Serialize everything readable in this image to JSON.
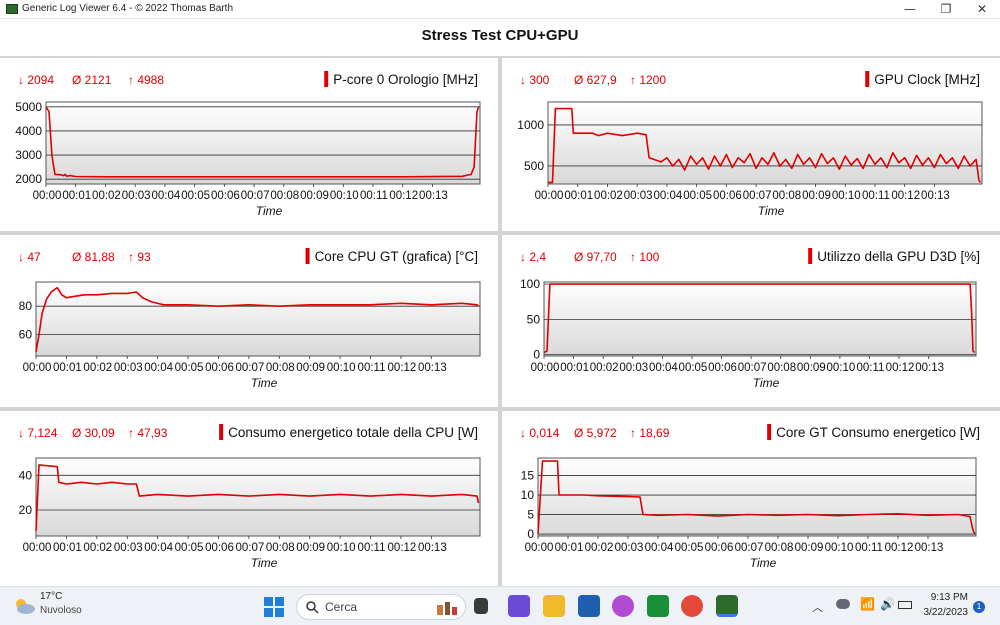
{
  "window": {
    "title": "Generic Log Viewer 6.4 - © 2022 Thomas Barth",
    "minimize": "—",
    "maximize": "❐",
    "close": "✕"
  },
  "main_title": "Stress Test CPU+GPU",
  "colors": {
    "series": "#e00000",
    "plot_bg_top": "#ffffff",
    "plot_bg_bottom": "#d9d9d9"
  },
  "chart_data": [
    {
      "type": "line",
      "title": "P-core 0 Orologio [MHz]",
      "stats": {
        "min": "↓ 2094",
        "avg": "Ø 2121",
        "max": "↑ 4988"
      },
      "xlabel": "Time",
      "ylabel": "",
      "xlim": [
        0,
        14.6
      ],
      "ylim": [
        1800,
        5200
      ],
      "yticks": [
        2000,
        3000,
        4000,
        5000
      ],
      "series": [
        {
          "name": "",
          "points": [
            [
              0,
              4988
            ],
            [
              0.1,
              4800
            ],
            [
              0.2,
              3000
            ],
            [
              0.3,
              2200
            ],
            [
              0.5,
              2180
            ],
            [
              0.6,
              2150
            ],
            [
              0.65,
              2200
            ],
            [
              0.7,
              2120
            ],
            [
              0.8,
              2150
            ],
            [
              1,
              2110
            ],
            [
              2,
              2100
            ],
            [
              4,
              2100
            ],
            [
              6,
              2100
            ],
            [
              8,
              2100
            ],
            [
              10,
              2100
            ],
            [
              12,
              2100
            ],
            [
              14,
              2120
            ],
            [
              14.3,
              2200
            ],
            [
              14.4,
              2500
            ],
            [
              14.5,
              4800
            ],
            [
              14.55,
              4988
            ]
          ]
        }
      ]
    },
    {
      "type": "line",
      "title": "GPU Clock [MHz]",
      "stats": {
        "min": "↓ 300",
        "avg": "Ø 627,9",
        "max": "↑ 1200"
      },
      "xlabel": "Time",
      "ylabel": "",
      "xlim": [
        0,
        14.6
      ],
      "ylim": [
        280,
        1280
      ],
      "yticks": [
        500,
        1000
      ],
      "series": [
        {
          "name": "",
          "points": [
            [
              0,
              300
            ],
            [
              0.15,
              300
            ],
            [
              0.25,
              1200
            ],
            [
              0.8,
              1200
            ],
            [
              0.85,
              900
            ],
            [
              1.5,
              900
            ],
            [
              1.7,
              870
            ],
            [
              2,
              900
            ],
            [
              2.5,
              870
            ],
            [
              3,
              900
            ],
            [
              3.3,
              880
            ],
            [
              3.4,
              600
            ],
            [
              3.8,
              550
            ],
            [
              4.0,
              600
            ],
            [
              4.2,
              500
            ],
            [
              4.4,
              580
            ],
            [
              4.6,
              450
            ],
            [
              4.8,
              620
            ],
            [
              5.0,
              520
            ],
            [
              5.2,
              600
            ],
            [
              5.4,
              460
            ],
            [
              5.6,
              620
            ],
            [
              5.8,
              500
            ],
            [
              6.0,
              640
            ],
            [
              6.2,
              480
            ],
            [
              6.4,
              600
            ],
            [
              6.6,
              540
            ],
            [
              6.8,
              650
            ],
            [
              7.0,
              470
            ],
            [
              7.2,
              600
            ],
            [
              7.4,
              520
            ],
            [
              7.6,
              660
            ],
            [
              7.8,
              500
            ],
            [
              8.0,
              580
            ],
            [
              8.2,
              470
            ],
            [
              8.4,
              640
            ],
            [
              8.6,
              520
            ],
            [
              8.8,
              600
            ],
            [
              9.0,
              480
            ],
            [
              9.2,
              650
            ],
            [
              9.4,
              530
            ],
            [
              9.6,
              600
            ],
            [
              9.8,
              460
            ],
            [
              10,
              620
            ],
            [
              10.2,
              510
            ],
            [
              10.4,
              590
            ],
            [
              10.6,
              470
            ],
            [
              10.8,
              640
            ],
            [
              11,
              520
            ],
            [
              11.2,
              600
            ],
            [
              11.4,
              480
            ],
            [
              11.6,
              660
            ],
            [
              11.8,
              540
            ],
            [
              12,
              600
            ],
            [
              12.2,
              470
            ],
            [
              12.4,
              630
            ],
            [
              12.6,
              510
            ],
            [
              12.8,
              600
            ],
            [
              13,
              480
            ],
            [
              13.2,
              640
            ],
            [
              13.4,
              530
            ],
            [
              13.6,
              600
            ],
            [
              13.8,
              470
            ],
            [
              14,
              620
            ],
            [
              14.2,
              500
            ],
            [
              14.4,
              580
            ],
            [
              14.5,
              320
            ],
            [
              14.55,
              300
            ]
          ]
        }
      ]
    },
    {
      "type": "line",
      "title": "Core CPU GT (grafica) [°C]",
      "stats": {
        "min": "↓ 47",
        "avg": "Ø 81,88",
        "max": "↑ 93"
      },
      "xlabel": "Time",
      "ylabel": "",
      "xlim": [
        0,
        14.6
      ],
      "ylim": [
        45,
        97
      ],
      "yticks": [
        60,
        80
      ],
      "series": [
        {
          "name": "",
          "points": [
            [
              0,
              48
            ],
            [
              0.1,
              60
            ],
            [
              0.2,
              75
            ],
            [
              0.35,
              85
            ],
            [
              0.5,
              90
            ],
            [
              0.7,
              93
            ],
            [
              0.85,
              88
            ],
            [
              1.0,
              86
            ],
            [
              1.3,
              87
            ],
            [
              1.6,
              88
            ],
            [
              2.0,
              88
            ],
            [
              2.5,
              89
            ],
            [
              3.0,
              89
            ],
            [
              3.3,
              90
            ],
            [
              3.5,
              86
            ],
            [
              3.8,
              83
            ],
            [
              4.2,
              81
            ],
            [
              5,
              81
            ],
            [
              6,
              80
            ],
            [
              7,
              81
            ],
            [
              8,
              80
            ],
            [
              9,
              81
            ],
            [
              10,
              81
            ],
            [
              11,
              81
            ],
            [
              12,
              82
            ],
            [
              13,
              81
            ],
            [
              14,
              82
            ],
            [
              14.5,
              81
            ],
            [
              14.55,
              80
            ]
          ]
        }
      ]
    },
    {
      "type": "line",
      "title": "Utilizzo della GPU D3D [%]",
      "stats": {
        "min": "↓ 2,4",
        "avg": "Ø 97,70",
        "max": "↑ 100"
      },
      "xlabel": "Time",
      "ylabel": "",
      "xlim": [
        0,
        14.6
      ],
      "ylim": [
        -2,
        103
      ],
      "yticks": [
        0,
        50,
        100
      ],
      "series": [
        {
          "name": "",
          "points": [
            [
              0,
              3
            ],
            [
              0.1,
              5
            ],
            [
              0.2,
              100
            ],
            [
              14.4,
              100
            ],
            [
              14.45,
              60
            ],
            [
              14.5,
              5
            ],
            [
              14.55,
              3
            ]
          ]
        }
      ]
    },
    {
      "type": "line",
      "title": "Consumo energetico totale della CPU [W]",
      "stats": {
        "min": "↓ 7,124",
        "avg": "Ø 30,09",
        "max": "↑ 47,93"
      },
      "xlabel": "Time",
      "ylabel": "",
      "xlim": [
        0,
        14.6
      ],
      "ylim": [
        5,
        50
      ],
      "yticks": [
        20,
        40
      ],
      "series": [
        {
          "name": "",
          "points": [
            [
              0,
              8
            ],
            [
              0.1,
              46
            ],
            [
              0.7,
              45
            ],
            [
              0.75,
              36
            ],
            [
              1,
              35
            ],
            [
              1.5,
              36
            ],
            [
              2,
              35
            ],
            [
              2.5,
              36
            ],
            [
              3,
              35
            ],
            [
              3.3,
              35
            ],
            [
              3.4,
              28
            ],
            [
              4,
              29
            ],
            [
              5,
              28
            ],
            [
              6,
              29
            ],
            [
              7,
              28
            ],
            [
              8,
              29
            ],
            [
              9,
              28
            ],
            [
              10,
              29
            ],
            [
              11,
              28
            ],
            [
              12,
              29
            ],
            [
              13,
              28
            ],
            [
              14,
              29
            ],
            [
              14.5,
              28
            ],
            [
              14.55,
              24
            ]
          ]
        }
      ]
    },
    {
      "type": "line",
      "title": "Core GT Consumo energetico [W]",
      "stats": {
        "min": "↓ 0,014",
        "avg": "Ø 5,972",
        "max": "↑ 18,69"
      },
      "xlabel": "Time",
      "ylabel": "",
      "xlim": [
        0,
        14.6
      ],
      "ylim": [
        -0.5,
        19.5
      ],
      "yticks": [
        0,
        5,
        10,
        15
      ],
      "series": [
        {
          "name": "",
          "points": [
            [
              0,
              0.1
            ],
            [
              0.15,
              18.7
            ],
            [
              0.65,
              18.7
            ],
            [
              0.7,
              10
            ],
            [
              1.5,
              10
            ],
            [
              2,
              9.8
            ],
            [
              3,
              9.6
            ],
            [
              3.4,
              9.5
            ],
            [
              3.5,
              5
            ],
            [
              4,
              4.8
            ],
            [
              5,
              5
            ],
            [
              6,
              4.6
            ],
            [
              7,
              5
            ],
            [
              8,
              4.8
            ],
            [
              9,
              5
            ],
            [
              10,
              4.7
            ],
            [
              11,
              5
            ],
            [
              12,
              5.2
            ],
            [
              13,
              4.8
            ],
            [
              14,
              5
            ],
            [
              14.4,
              4.5
            ],
            [
              14.5,
              1
            ],
            [
              14.55,
              0.1
            ]
          ]
        }
      ]
    }
  ],
  "xticks": [
    "00:00",
    "00:01",
    "00:02",
    "00:03",
    "00:04",
    "00:05",
    "00:06",
    "00:07",
    "00:08",
    "00:09",
    "00:10",
    "00:11",
    "00:12",
    "00:13"
  ],
  "taskbar": {
    "weather_temp": "17°C",
    "weather_desc": "Nuvoloso",
    "search_placeholder": "Cerca",
    "time": "9:13 PM",
    "date": "3/22/2023",
    "notifications": "1"
  }
}
